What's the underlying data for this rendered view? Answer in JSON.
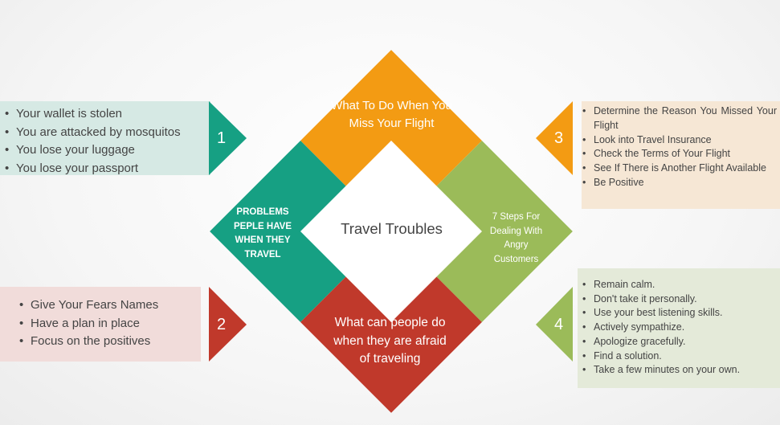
{
  "center_title": "Travel Troubles",
  "quadrants": {
    "top": "What To Do When You Miss Your Flight",
    "left": "PROBLEMS PEPLE HAVE WHEN THEY TRAVEL",
    "right": "7 Steps For Dealing With Angry Customers",
    "bottom": "What can people do when they are afraid of traveling"
  },
  "colors": {
    "top": "#f39b13",
    "left": "#16a083",
    "right": "#9bbb59",
    "bottom": "#c0392b"
  },
  "panels": [
    {
      "number": "1",
      "items": [
        "Your wallet is stolen",
        "You are attacked by mosquitos",
        "You lose your luggage",
        "You lose your passport"
      ]
    },
    {
      "number": "2",
      "items": [
        "Give Your Fears Names",
        "Have a plan in place",
        "Focus on the positives"
      ]
    },
    {
      "number": "3",
      "items": [
        "Determine the Reason You Missed Your Flight",
        "Look into Travel Insurance",
        "Check the Terms of Your Flight",
        "See If There is Another Flight Available",
        "Be Positive"
      ]
    },
    {
      "number": "4",
      "items": [
        "Remain calm.",
        "Don't take it personally.",
        "Use your best listening skills.",
        "Actively sympathize.",
        "Apologize gracefully.",
        "Find a solution.",
        "Take a few minutes on your own."
      ]
    }
  ]
}
